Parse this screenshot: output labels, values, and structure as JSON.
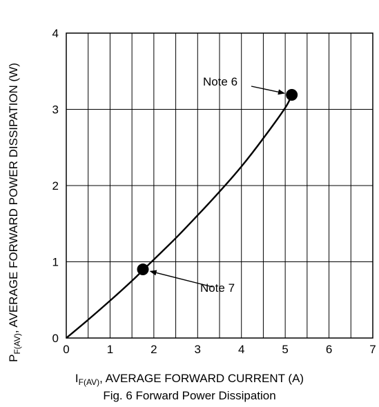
{
  "chart_data": {
    "type": "line",
    "xlabel": {
      "symbol": "I",
      "subscript": "F(AV)",
      "text": ", AVERAGE FORWARD CURRENT (A)"
    },
    "ylabel": {
      "symbol": "P",
      "subscript": "F(AV)",
      "text": ", AVERAGE FORWARD POWER DISSIPATION (W)"
    },
    "caption": "Fig. 6  Forward Power Dissipation",
    "xlim": [
      0,
      7
    ],
    "ylim": [
      0,
      4
    ],
    "x_ticks": [
      "0",
      "1",
      "2",
      "3",
      "4",
      "5",
      "6",
      "7"
    ],
    "y_ticks": [
      "0",
      "1",
      "2",
      "3",
      "4"
    ],
    "x_minor_step": 0.5,
    "grid": true,
    "series": [
      {
        "color": "#000000",
        "points": [
          [
            0,
            0
          ],
          [
            0.5,
            0.24
          ],
          [
            1.0,
            0.49
          ],
          [
            1.5,
            0.75
          ],
          [
            1.75,
            0.89
          ],
          [
            2.0,
            1.03
          ],
          [
            2.5,
            1.31
          ],
          [
            3.0,
            1.61
          ],
          [
            3.5,
            1.92
          ],
          [
            4.0,
            2.25
          ],
          [
            4.5,
            2.62
          ],
          [
            5.0,
            3.02
          ],
          [
            5.15,
            3.19
          ]
        ]
      }
    ],
    "markers": [
      {
        "label": "Note 6",
        "x": 5.15,
        "y": 3.19
      },
      {
        "label": "Note 7",
        "x": 1.75,
        "y": 0.9
      }
    ]
  }
}
